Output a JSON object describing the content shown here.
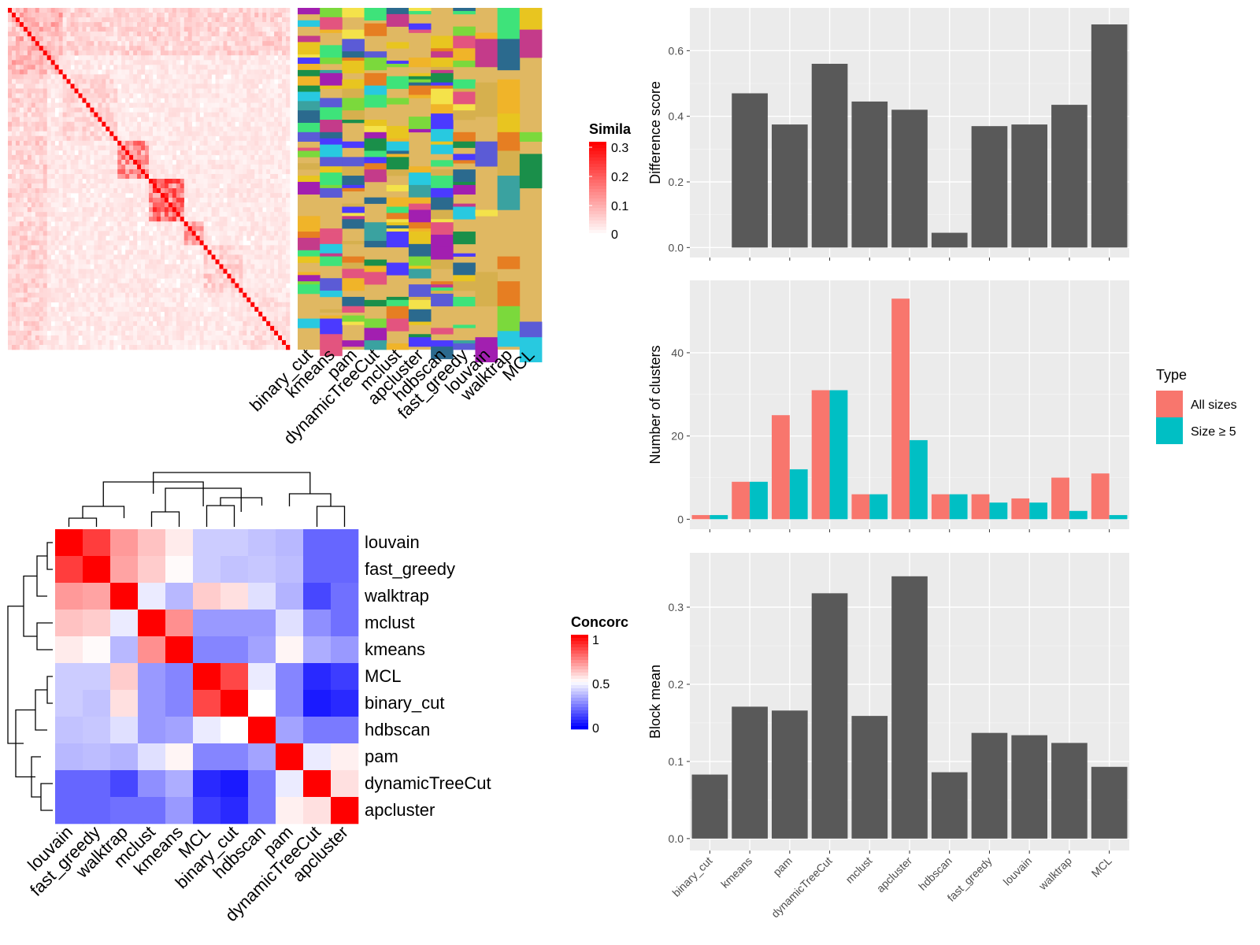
{
  "colors": {
    "similarity_high": "#ff0000",
    "similarity_low": "#ffffff",
    "concordance_high": "#ff0000",
    "concordance_mid": "#ffffff",
    "concordance_low": "#0000ff",
    "bar_fill": "#595959",
    "panel_bg": "#ebebeb",
    "all_sizes": "#f8766d",
    "size_ge5": "#00bfc4",
    "class_bg": "#e0b862"
  },
  "similarity_legend": {
    "title": "Simila",
    "ticks": [
      "0.3",
      "0.2",
      "0.1",
      "0"
    ]
  },
  "concordance_legend": {
    "title": "Concorc",
    "ticks": [
      "1",
      "0.5",
      "0"
    ]
  },
  "class_columns": [
    "binary_cut",
    "kmeans",
    "pam",
    "dynamicTreeCut",
    "mclust",
    "apcluster",
    "hdbscan",
    "fast_greedy",
    "louvain",
    "walktrap",
    "MCL"
  ],
  "chart_data": [
    {
      "type": "heatmap",
      "title": "",
      "legend_title": "Simila",
      "range": [
        0,
        0.3
      ],
      "labels": []
    },
    {
      "type": "heatmap",
      "title": "",
      "legend_title": "Concorc",
      "range": [
        0,
        1
      ],
      "rows": [
        "louvain",
        "fast_greedy",
        "walktrap",
        "mclust",
        "kmeans",
        "MCL",
        "binary_cut",
        "hdbscan",
        "pam",
        "dynamicTreeCut",
        "apcluster"
      ],
      "columns": [
        "louvain",
        "fast_greedy",
        "walktrap",
        "mclust",
        "kmeans",
        "MCL",
        "binary_cut",
        "hdbscan",
        "pam",
        "dynamicTreeCut",
        "apcluster"
      ],
      "values": [
        [
          1.0,
          0.88,
          0.7,
          0.62,
          0.54,
          0.4,
          0.4,
          0.38,
          0.36,
          0.2,
          0.2
        ],
        [
          0.88,
          1.0,
          0.68,
          0.6,
          0.51,
          0.4,
          0.38,
          0.39,
          0.37,
          0.2,
          0.2
        ],
        [
          0.7,
          0.68,
          1.0,
          0.46,
          0.36,
          0.6,
          0.56,
          0.44,
          0.35,
          0.14,
          0.22
        ],
        [
          0.62,
          0.6,
          0.46,
          1.0,
          0.72,
          0.3,
          0.3,
          0.3,
          0.44,
          0.28,
          0.22
        ],
        [
          0.54,
          0.51,
          0.36,
          0.72,
          1.0,
          0.26,
          0.26,
          0.32,
          0.52,
          0.34,
          0.3
        ],
        [
          0.4,
          0.4,
          0.6,
          0.3,
          0.26,
          1.0,
          0.86,
          0.46,
          0.26,
          0.08,
          0.12
        ],
        [
          0.4,
          0.38,
          0.56,
          0.3,
          0.26,
          0.86,
          1.0,
          0.5,
          0.26,
          0.05,
          0.08
        ],
        [
          0.38,
          0.39,
          0.44,
          0.3,
          0.32,
          0.46,
          0.5,
          1.0,
          0.32,
          0.24,
          0.24
        ],
        [
          0.36,
          0.37,
          0.35,
          0.44,
          0.52,
          0.26,
          0.26,
          0.32,
          1.0,
          0.46,
          0.53
        ],
        [
          0.2,
          0.2,
          0.14,
          0.28,
          0.34,
          0.08,
          0.05,
          0.24,
          0.46,
          1.0,
          0.56
        ],
        [
          0.2,
          0.2,
          0.22,
          0.22,
          0.3,
          0.12,
          0.08,
          0.24,
          0.53,
          0.56,
          1.0
        ]
      ]
    },
    {
      "type": "bar",
      "title": "",
      "xlabel": "",
      "ylabel": "Difference score",
      "categories": [
        "binary_cut",
        "kmeans",
        "pam",
        "dynamicTreeCut",
        "mclust",
        "apcluster",
        "hdbscan",
        "fast_greedy",
        "louvain",
        "walktrap",
        "MCL"
      ],
      "values": [
        0.0,
        0.47,
        0.375,
        0.56,
        0.445,
        0.42,
        0.045,
        0.37,
        0.375,
        0.435,
        0.68
      ],
      "ylim": [
        0,
        0.7
      ],
      "yticks": [
        0.0,
        0.2,
        0.4,
        0.6
      ],
      "ytick_labels": [
        "0.0",
        "0.2",
        "0.4",
        "0.6"
      ],
      "grid": true
    },
    {
      "type": "bar",
      "title": "",
      "xlabel": "",
      "ylabel": "Number of clusters",
      "categories": [
        "binary_cut",
        "kmeans",
        "pam",
        "dynamicTreeCut",
        "mclust",
        "apcluster",
        "hdbscan",
        "fast_greedy",
        "louvain",
        "walktrap",
        "MCL"
      ],
      "series": [
        {
          "name": "All sizes",
          "values": [
            1,
            9,
            25,
            31,
            6,
            53,
            6,
            6,
            5,
            10,
            11
          ]
        },
        {
          "name": "Size ≥ 5",
          "values": [
            1,
            9,
            12,
            31,
            6,
            19,
            6,
            4,
            4,
            2,
            1
          ]
        }
      ],
      "legend_title": "Type",
      "legend_position": "right",
      "ylim": [
        0,
        55
      ],
      "yticks": [
        0,
        20,
        40
      ],
      "ytick_labels": [
        "0",
        "20",
        "40"
      ],
      "grid": true
    },
    {
      "type": "bar",
      "title": "",
      "xlabel": "",
      "ylabel": "Block mean",
      "categories": [
        "binary_cut",
        "kmeans",
        "pam",
        "dynamicTreeCut",
        "mclust",
        "apcluster",
        "hdbscan",
        "fast_greedy",
        "louvain",
        "walktrap",
        "MCL"
      ],
      "values": [
        0.083,
        0.171,
        0.166,
        0.318,
        0.159,
        0.34,
        0.086,
        0.137,
        0.134,
        0.124,
        0.093
      ],
      "ylim": [
        0,
        0.355
      ],
      "yticks": [
        0.0,
        0.1,
        0.2,
        0.3
      ],
      "ytick_labels": [
        "0.0",
        "0.1",
        "0.2",
        "0.3"
      ],
      "grid": true
    }
  ]
}
